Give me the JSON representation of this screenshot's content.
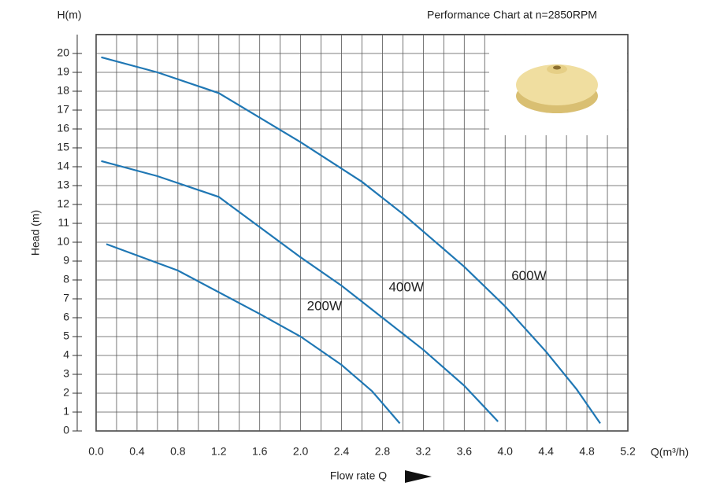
{
  "chart_data": {
    "type": "line",
    "title": "Performance Chart at n=2850RPM",
    "y_unit": "H(m)",
    "y_label": "Head (m)",
    "x_unit": "Q(m³/h)",
    "x_label": "Flow rate Q",
    "xlim": [
      0,
      5.2
    ],
    "ylim": [
      0,
      21
    ],
    "xticks": [
      {
        "value": 0,
        "label": "0.0"
      },
      0.4,
      0.8,
      1.2,
      1.6,
      {
        "value": 2,
        "label": "2.0"
      },
      2.4,
      2.8,
      3.2,
      3.6,
      {
        "value": 4,
        "label": "4.0"
      },
      4.4,
      4.8,
      5.2
    ],
    "yticks": [
      0,
      1,
      2,
      3,
      4,
      5,
      6,
      7,
      8,
      9,
      10,
      11,
      12,
      13,
      14,
      15,
      16,
      17,
      18,
      19,
      20
    ],
    "grid": true,
    "series": [
      {
        "name": "600W",
        "color": "#1f77b4",
        "x": [
          0.05,
          0.6,
          1.2,
          2.0,
          2.6,
          3.0,
          3.6,
          4.0,
          4.4,
          4.7,
          4.93
        ],
        "values": [
          19.8,
          19.0,
          17.9,
          15.3,
          13.2,
          11.5,
          8.7,
          6.6,
          4.2,
          2.2,
          0.4
        ]
      },
      {
        "name": "400W",
        "color": "#1f77b4",
        "x": [
          0.05,
          0.6,
          1.2,
          2.0,
          2.4,
          2.8,
          3.2,
          3.6,
          3.93
        ],
        "values": [
          14.3,
          13.5,
          12.4,
          9.2,
          7.7,
          6.0,
          4.3,
          2.4,
          0.5
        ]
      },
      {
        "name": "200W",
        "color": "#1f77b4",
        "x": [
          0.1,
          0.8,
          1.6,
          2.0,
          2.4,
          2.7,
          2.97
        ],
        "values": [
          9.9,
          8.5,
          6.2,
          5.0,
          3.5,
          2.1,
          0.4
        ]
      }
    ]
  }
}
